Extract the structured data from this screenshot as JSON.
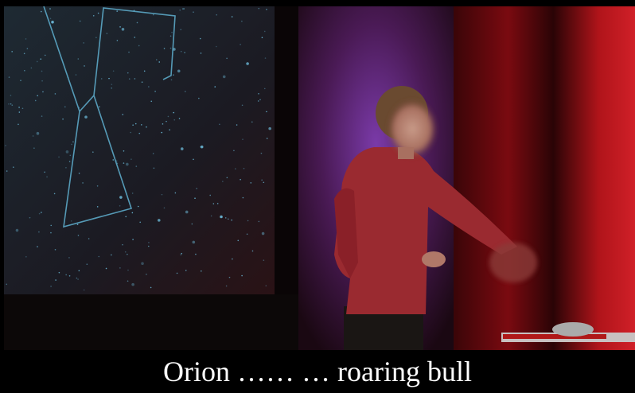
{
  "subtitle": "Orion …… … roaring bull"
}
